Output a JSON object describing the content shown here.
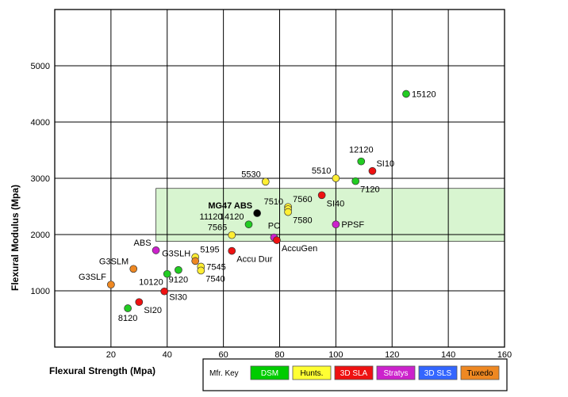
{
  "chart_data": {
    "type": "scatter",
    "xlabel": "Flexural Strength (Mpa)",
    "ylabel": "Flexural Modulus (Mpa)",
    "xlim": [
      0,
      160
    ],
    "ylim": [
      0,
      6000
    ],
    "xticks": [
      20,
      40,
      60,
      80,
      100,
      120,
      140,
      160
    ],
    "yticks": [
      1000,
      2000,
      3000,
      4000,
      5000
    ],
    "grid": true,
    "highlight_region": {
      "x": [
        36,
        160
      ],
      "y": [
        1880,
        2820
      ],
      "color": "#d8f5d0"
    },
    "legend": {
      "title": "Mfr. Key",
      "placement": "bottom-right",
      "entries": [
        {
          "label": "DSM",
          "color": "#00cc00",
          "text_color": "#ffffff"
        },
        {
          "label": "Hunts.",
          "color": "#ffff33",
          "text_color": "#000000"
        },
        {
          "label": "3D SLA",
          "color": "#ee1111",
          "text_color": "#ffffff"
        },
        {
          "label": "Stratys",
          "color": "#cc22cc",
          "text_color": "#ffffff"
        },
        {
          "label": "3D SLS",
          "color": "#3366ff",
          "text_color": "#ffffff"
        },
        {
          "label": "Tuxedo",
          "color": "#ee8822",
          "text_color": "#000000"
        }
      ]
    },
    "points": [
      {
        "label": "15120",
        "x": 125,
        "y": 4500,
        "color": "#22cc22",
        "label_pos": "right"
      },
      {
        "label": "12120",
        "x": 109,
        "y": 3300,
        "color": "#22cc22",
        "label_pos": "top"
      },
      {
        "label": "SI10",
        "x": 113,
        "y": 3130,
        "color": "#ee1111",
        "label_pos": "right-up"
      },
      {
        "label": "7120",
        "x": 107,
        "y": 2950,
        "color": "#22cc22",
        "label_pos": "bottom-right"
      },
      {
        "label": "5510",
        "x": 100,
        "y": 3000,
        "color": "#ffee33",
        "label_pos": "top-left"
      },
      {
        "label": "5530",
        "x": 75,
        "y": 2940,
        "color": "#ffee33",
        "label_pos": "top-left"
      },
      {
        "label": "SI40",
        "x": 95,
        "y": 2700,
        "color": "#ee1111",
        "label_pos": "bottom-right"
      },
      {
        "label": "7560",
        "x": 83,
        "y": 2490,
        "color": "#ffee33",
        "label_pos": "top-right"
      },
      {
        "label": "7510",
        "x": 83,
        "y": 2450,
        "color": "#ffee33",
        "label_pos": "top-left"
      },
      {
        "label": "7580",
        "x": 83,
        "y": 2400,
        "color": "#ffee33",
        "label_pos": "bottom-right"
      },
      {
        "label": "MG47 ABS",
        "x": 72,
        "y": 2380,
        "color": "#000000",
        "label_pos": "top-left",
        "bold": true
      },
      {
        "label": "11120",
        "x": 69,
        "y": 2180,
        "color": "#22cc22",
        "label_pos": "top-left-far"
      },
      {
        "label": "14120",
        "x": 69,
        "y": 2180,
        "color": "#22cc22",
        "label_pos": "top-left"
      },
      {
        "label": "PPSF",
        "x": 100,
        "y": 2180,
        "color": "#cc22cc",
        "label_pos": "right"
      },
      {
        "label": "7565",
        "x": 63,
        "y": 1990,
        "color": "#ffee33",
        "label_pos": "top-left"
      },
      {
        "label": "PC",
        "x": 78,
        "y": 1950,
        "color": "#cc22cc",
        "label_pos": "top"
      },
      {
        "label": "AccuGen",
        "x": 79,
        "y": 1900,
        "color": "#ee1111",
        "label_pos": "bottom-right"
      },
      {
        "label": "Accu Dur",
        "x": 63,
        "y": 1710,
        "color": "#ee1111",
        "label_pos": "bottom-right"
      },
      {
        "label": "ABS",
        "x": 36,
        "y": 1720,
        "color": "#cc22cc",
        "label_pos": "top-left"
      },
      {
        "label": "5195",
        "x": 50,
        "y": 1600,
        "color": "#ffee33",
        "label_pos": "top-right"
      },
      {
        "label": "G3SLH",
        "x": 50,
        "y": 1530,
        "color": "#ee8822",
        "label_pos": "top-left"
      },
      {
        "label": "7545",
        "x": 52,
        "y": 1430,
        "color": "#ffee33",
        "label_pos": "right"
      },
      {
        "label": "7540",
        "x": 52,
        "y": 1360,
        "color": "#ffee33",
        "label_pos": "bottom-right"
      },
      {
        "label": "G3SLM",
        "x": 28,
        "y": 1390,
        "color": "#ee8822",
        "label_pos": "top-left"
      },
      {
        "label": "9120",
        "x": 44,
        "y": 1370,
        "color": "#22cc22",
        "label_pos": "bottom"
      },
      {
        "label": "10120",
        "x": 40,
        "y": 1300,
        "color": "#22cc22",
        "label_pos": "bottom-left"
      },
      {
        "label": "G3SLF",
        "x": 20,
        "y": 1110,
        "color": "#ee8822",
        "label_pos": "top-left"
      },
      {
        "label": "SI30",
        "x": 39,
        "y": 990,
        "color": "#ee1111",
        "label_pos": "right-down"
      },
      {
        "label": "SI20",
        "x": 30,
        "y": 800,
        "color": "#ee1111",
        "label_pos": "bottom-right"
      },
      {
        "label": "8120",
        "x": 26,
        "y": 690,
        "color": "#22cc22",
        "label_pos": "bottom"
      }
    ]
  }
}
